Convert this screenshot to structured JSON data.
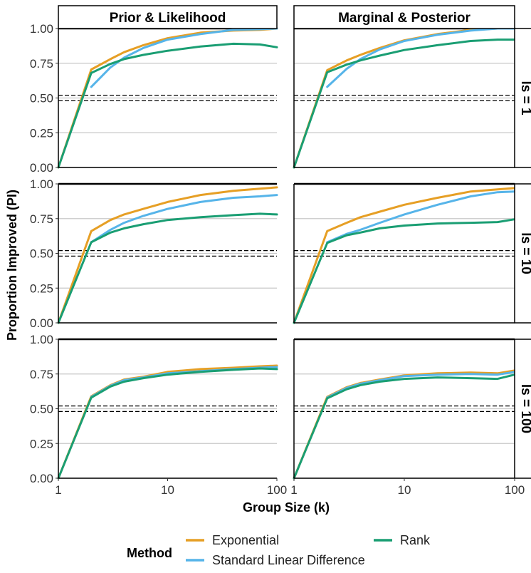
{
  "chart_data": {
    "type": "line",
    "facet_columns": [
      "Prior & Likelihood",
      "Marginal & Posterior"
    ],
    "facet_rows": [
      "ls = 1",
      "ls = 10",
      "ls = 100"
    ],
    "xlabel": "Group Size (k)",
    "ylabel": "Proportion Improved (PI)",
    "x_scale": "log10",
    "xlim": [
      1,
      100
    ],
    "x_ticks": [
      "1",
      "10",
      "100"
    ],
    "ylim": [
      0,
      1
    ],
    "y_ticks": [
      "0.00",
      "0.25",
      "0.50",
      "0.75",
      "1.00"
    ],
    "reference_lines": [
      {
        "y": 1.0,
        "style": "solid"
      },
      {
        "y": 0.52,
        "style": "dashed"
      },
      {
        "y": 0.48,
        "style": "dashed"
      }
    ],
    "legend": {
      "title": "Method",
      "position": "bottom",
      "entries": [
        {
          "name": "Exponential",
          "color": "#E69F25"
        },
        {
          "name": "Standard Linear Difference",
          "color": "#56B4E9"
        },
        {
          "name": "Rank",
          "color": "#1A9E73"
        }
      ]
    },
    "panels": [
      {
        "column": "Prior & Likelihood",
        "row": "ls = 1",
        "series": [
          {
            "name": "Exponential",
            "points": [
              [
                1,
                0
              ],
              [
                2,
                0.705
              ],
              [
                3,
                0.78
              ],
              [
                4,
                0.83
              ],
              [
                6,
                0.88
              ],
              [
                10,
                0.93
              ],
              [
                20,
                0.97
              ],
              [
                40,
                0.985
              ],
              [
                70,
                0.99
              ],
              [
                100,
                1.0
              ]
            ]
          },
          {
            "name": "Standard Linear Difference",
            "points": [
              [
                2,
                0.58
              ],
              [
                3,
                0.72
              ],
              [
                4,
                0.79
              ],
              [
                6,
                0.86
              ],
              [
                10,
                0.92
              ],
              [
                20,
                0.96
              ],
              [
                40,
                0.99
              ],
              [
                70,
                0.995
              ],
              [
                100,
                1.0
              ]
            ]
          },
          {
            "name": "Rank",
            "points": [
              [
                1,
                0
              ],
              [
                2,
                0.68
              ],
              [
                3,
                0.745
              ],
              [
                4,
                0.78
              ],
              [
                6,
                0.81
              ],
              [
                10,
                0.84
              ],
              [
                20,
                0.87
              ],
              [
                40,
                0.89
              ],
              [
                70,
                0.885
              ],
              [
                100,
                0.865
              ]
            ]
          }
        ]
      },
      {
        "column": "Marginal & Posterior",
        "row": "ls = 1",
        "series": [
          {
            "name": "Exponential",
            "points": [
              [
                1,
                0
              ],
              [
                2,
                0.7
              ],
              [
                3,
                0.77
              ],
              [
                4,
                0.81
              ],
              [
                6,
                0.86
              ],
              [
                10,
                0.915
              ],
              [
                20,
                0.96
              ],
              [
                40,
                0.99
              ],
              [
                70,
                1.0
              ],
              [
                100,
                1.0
              ]
            ]
          },
          {
            "name": "Standard Linear Difference",
            "points": [
              [
                2,
                0.58
              ],
              [
                3,
                0.71
              ],
              [
                4,
                0.78
              ],
              [
                6,
                0.85
              ],
              [
                10,
                0.91
              ],
              [
                20,
                0.955
              ],
              [
                40,
                0.985
              ],
              [
                70,
                1.0
              ],
              [
                100,
                1.0
              ]
            ]
          },
          {
            "name": "Rank",
            "points": [
              [
                1,
                0
              ],
              [
                2,
                0.685
              ],
              [
                3,
                0.74
              ],
              [
                4,
                0.77
              ],
              [
                6,
                0.805
              ],
              [
                10,
                0.845
              ],
              [
                20,
                0.88
              ],
              [
                40,
                0.91
              ],
              [
                70,
                0.92
              ],
              [
                100,
                0.92
              ]
            ]
          }
        ]
      },
      {
        "column": "Prior & Likelihood",
        "row": "ls = 10",
        "series": [
          {
            "name": "Exponential",
            "points": [
              [
                1,
                0
              ],
              [
                2,
                0.66
              ],
              [
                3,
                0.74
              ],
              [
                4,
                0.78
              ],
              [
                6,
                0.82
              ],
              [
                10,
                0.87
              ],
              [
                20,
                0.92
              ],
              [
                40,
                0.95
              ],
              [
                70,
                0.965
              ],
              [
                100,
                0.975
              ]
            ]
          },
          {
            "name": "Standard Linear Difference",
            "points": [
              [
                2,
                0.58
              ],
              [
                3,
                0.67
              ],
              [
                4,
                0.72
              ],
              [
                6,
                0.77
              ],
              [
                10,
                0.82
              ],
              [
                20,
                0.87
              ],
              [
                40,
                0.9
              ],
              [
                70,
                0.91
              ],
              [
                100,
                0.92
              ]
            ]
          },
          {
            "name": "Rank",
            "points": [
              [
                1,
                0
              ],
              [
                2,
                0.58
              ],
              [
                3,
                0.65
              ],
              [
                4,
                0.68
              ],
              [
                6,
                0.71
              ],
              [
                10,
                0.74
              ],
              [
                20,
                0.76
              ],
              [
                40,
                0.775
              ],
              [
                70,
                0.785
              ],
              [
                100,
                0.78
              ]
            ]
          }
        ]
      },
      {
        "column": "Marginal & Posterior",
        "row": "ls = 10",
        "series": [
          {
            "name": "Exponential",
            "points": [
              [
                1,
                0
              ],
              [
                2,
                0.66
              ],
              [
                3,
                0.72
              ],
              [
                4,
                0.76
              ],
              [
                6,
                0.8
              ],
              [
                10,
                0.85
              ],
              [
                20,
                0.9
              ],
              [
                40,
                0.945
              ],
              [
                70,
                0.96
              ],
              [
                100,
                0.97
              ]
            ]
          },
          {
            "name": "Standard Linear Difference",
            "points": [
              [
                2,
                0.58
              ],
              [
                3,
                0.64
              ],
              [
                4,
                0.67
              ],
              [
                6,
                0.72
              ],
              [
                10,
                0.78
              ],
              [
                20,
                0.85
              ],
              [
                40,
                0.91
              ],
              [
                70,
                0.94
              ],
              [
                100,
                0.945
              ]
            ]
          },
          {
            "name": "Rank",
            "points": [
              [
                1,
                0
              ],
              [
                2,
                0.575
              ],
              [
                3,
                0.63
              ],
              [
                4,
                0.65
              ],
              [
                6,
                0.68
              ],
              [
                10,
                0.7
              ],
              [
                20,
                0.715
              ],
              [
                40,
                0.72
              ],
              [
                70,
                0.725
              ],
              [
                100,
                0.745
              ]
            ]
          }
        ]
      },
      {
        "column": "Prior & Likelihood",
        "row": "ls = 100",
        "series": [
          {
            "name": "Exponential",
            "points": [
              [
                1,
                0
              ],
              [
                2,
                0.59
              ],
              [
                3,
                0.67
              ],
              [
                4,
                0.71
              ],
              [
                6,
                0.73
              ],
              [
                10,
                0.765
              ],
              [
                20,
                0.785
              ],
              [
                40,
                0.795
              ],
              [
                70,
                0.805
              ],
              [
                100,
                0.81
              ]
            ]
          },
          {
            "name": "Standard Linear Difference",
            "points": [
              [
                2,
                0.585
              ],
              [
                3,
                0.665
              ],
              [
                4,
                0.705
              ],
              [
                6,
                0.725
              ],
              [
                10,
                0.755
              ],
              [
                20,
                0.77
              ],
              [
                40,
                0.785
              ],
              [
                70,
                0.795
              ],
              [
                100,
                0.8
              ]
            ]
          },
          {
            "name": "Rank",
            "points": [
              [
                1,
                0
              ],
              [
                2,
                0.58
              ],
              [
                3,
                0.66
              ],
              [
                4,
                0.695
              ],
              [
                6,
                0.72
              ],
              [
                10,
                0.745
              ],
              [
                20,
                0.765
              ],
              [
                40,
                0.78
              ],
              [
                70,
                0.79
              ],
              [
                100,
                0.785
              ]
            ]
          }
        ]
      },
      {
        "column": "Marginal & Posterior",
        "row": "ls = 100",
        "series": [
          {
            "name": "Exponential",
            "points": [
              [
                1,
                0
              ],
              [
                2,
                0.585
              ],
              [
                3,
                0.655
              ],
              [
                4,
                0.685
              ],
              [
                6,
                0.71
              ],
              [
                10,
                0.74
              ],
              [
                20,
                0.755
              ],
              [
                40,
                0.76
              ],
              [
                70,
                0.755
              ],
              [
                100,
                0.775
              ]
            ]
          },
          {
            "name": "Standard Linear Difference",
            "points": [
              [
                2,
                0.58
              ],
              [
                3,
                0.65
              ],
              [
                4,
                0.68
              ],
              [
                6,
                0.705
              ],
              [
                10,
                0.735
              ],
              [
                20,
                0.745
              ],
              [
                40,
                0.75
              ],
              [
                70,
                0.745
              ],
              [
                100,
                0.765
              ]
            ]
          },
          {
            "name": "Rank",
            "points": [
              [
                1,
                0
              ],
              [
                2,
                0.575
              ],
              [
                3,
                0.64
              ],
              [
                4,
                0.67
              ],
              [
                6,
                0.695
              ],
              [
                10,
                0.715
              ],
              [
                20,
                0.725
              ],
              [
                40,
                0.72
              ],
              [
                70,
                0.715
              ],
              [
                100,
                0.745
              ]
            ]
          }
        ]
      }
    ]
  }
}
